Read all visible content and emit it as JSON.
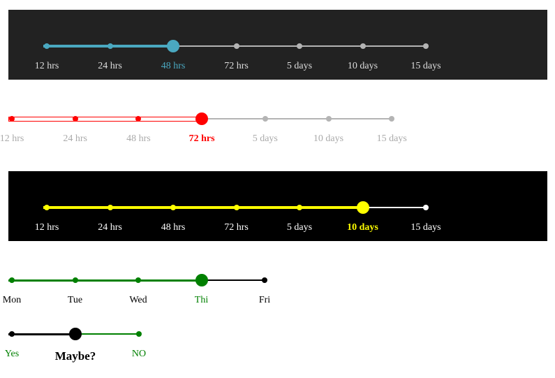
{
  "sliders": [
    {
      "id": "s1",
      "panel_color": "#222222",
      "active_color": "#4aa8c0",
      "inactive_color": "#b4b4b4",
      "label_color": "#dddddd",
      "active_index": 2,
      "labels": [
        "12 hrs",
        "24 hrs",
        "48 hrs",
        "72 hrs",
        "5 days",
        "10 days",
        "15 days"
      ]
    },
    {
      "id": "s2",
      "panel_color": "",
      "active_color": "#ff0000",
      "inactive_color": "#b4b4b4",
      "label_color": "#aaaaaa",
      "active_index": 3,
      "labels": [
        "12 hrs",
        "24 hrs",
        "48 hrs",
        "72 hrs",
        "5 days",
        "10 days",
        "15 days"
      ]
    },
    {
      "id": "s3",
      "panel_color": "#000000",
      "active_color": "#ffff00",
      "inactive_color": "#ffffff",
      "label_color": "#ffffff",
      "active_index": 5,
      "labels": [
        "12 hrs",
        "24 hrs",
        "48 hrs",
        "72 hrs",
        "5 days",
        "10 days",
        "15 days"
      ]
    },
    {
      "id": "s4",
      "panel_color": "",
      "active_color": "#008000",
      "inactive_color": "#000000",
      "label_color": "#000000",
      "active_index": 3,
      "labels": [
        "Mon",
        "Tue",
        "Wed",
        "Thi",
        "Fri"
      ]
    },
    {
      "id": "s5",
      "panel_color": "",
      "active_color": "#000000",
      "inactive_color": "#008000",
      "label_color": "#008000",
      "active_index": 1,
      "labels": [
        "Yes",
        "Maybe?",
        "NO"
      ]
    }
  ]
}
